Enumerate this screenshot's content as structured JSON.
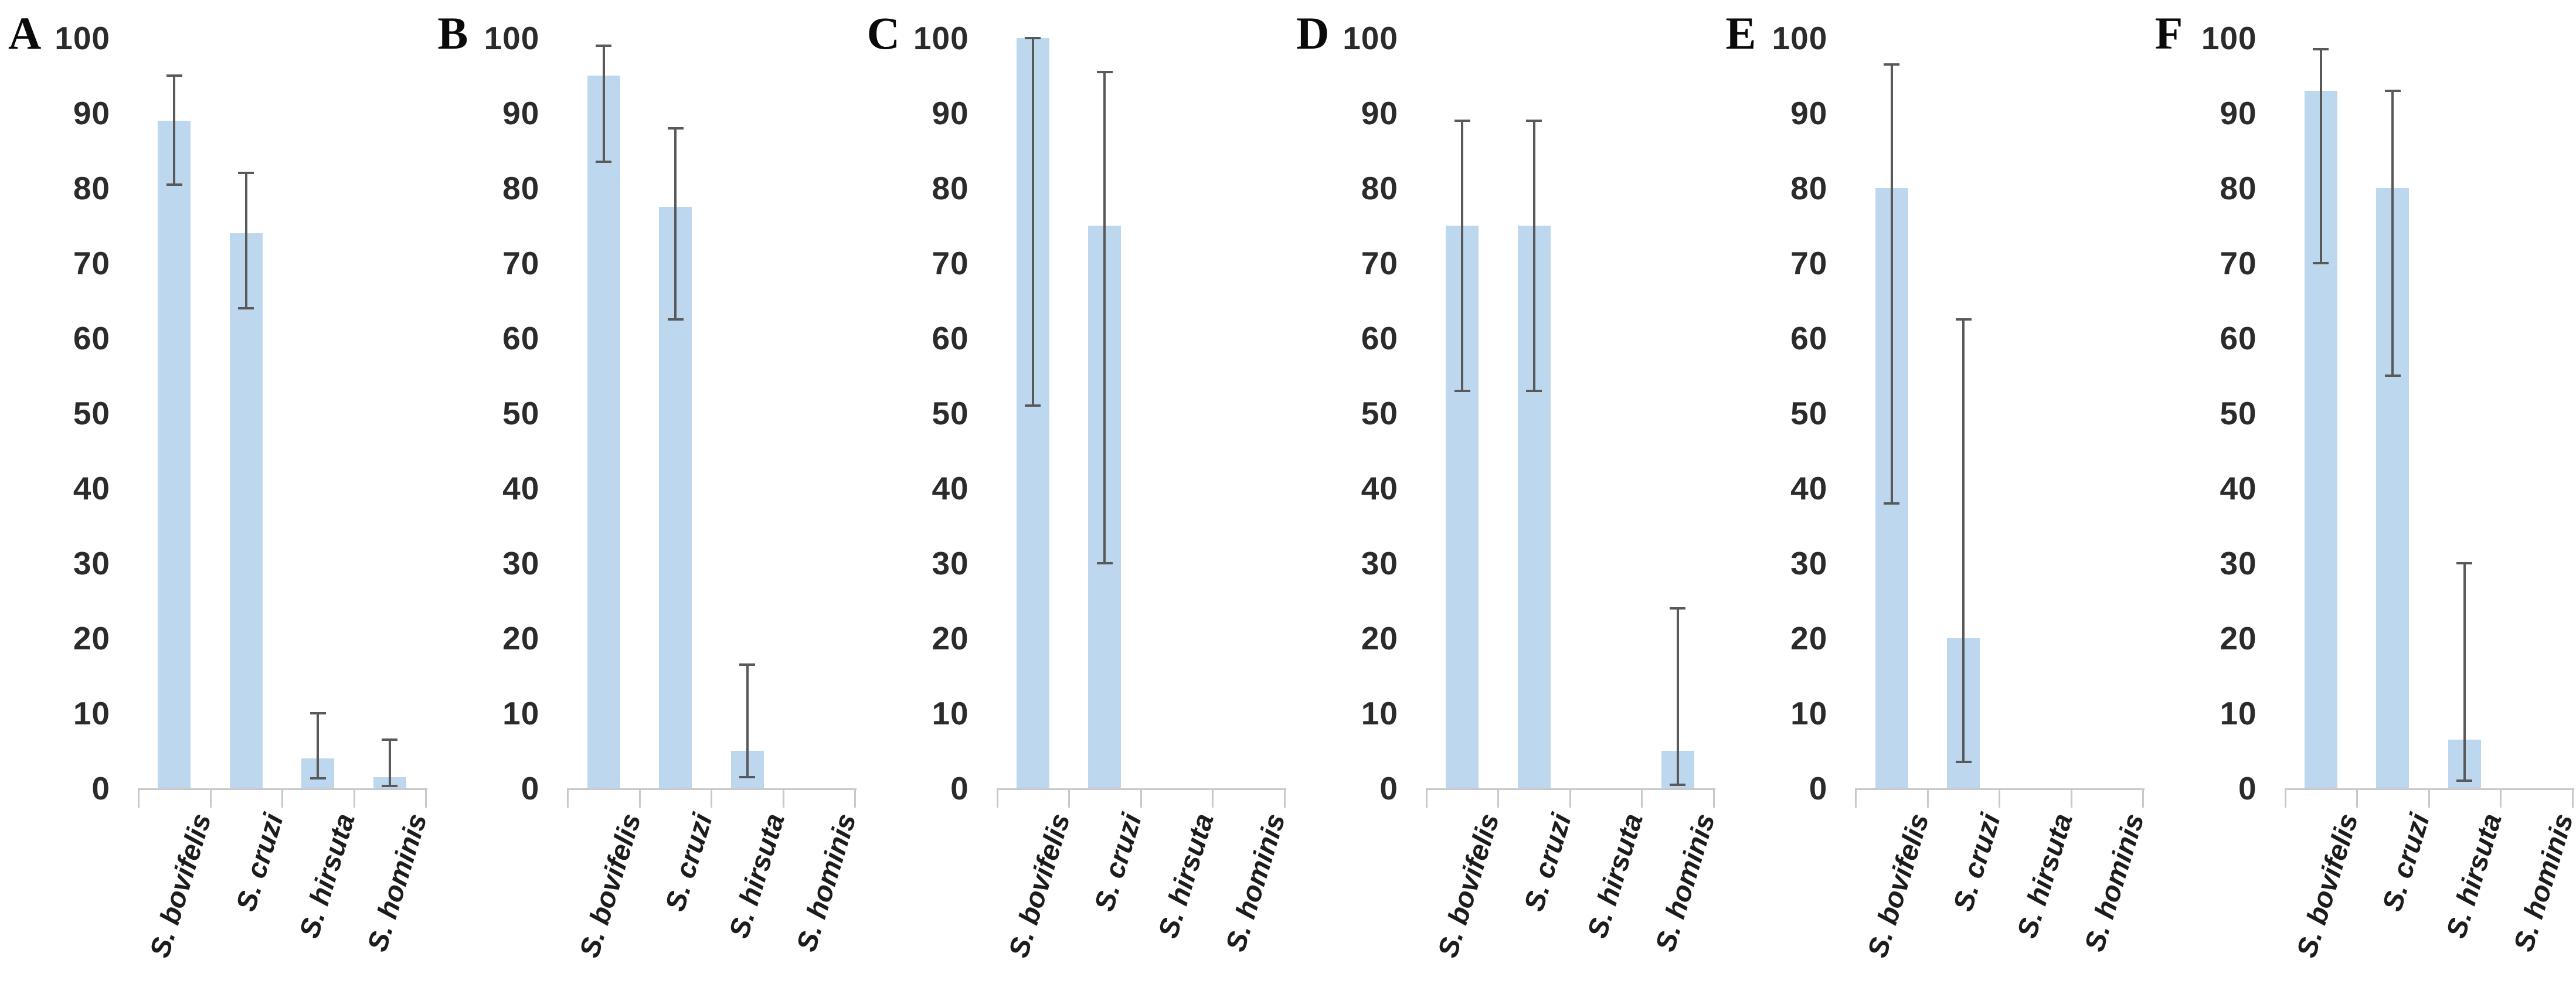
{
  "figure": {
    "background": "#ffffff",
    "bar_color": "#BDD7EE",
    "error_bar_color": "#595959",
    "axis_color": "#C9C9C9",
    "tick_label_color": "#2b2b2b"
  },
  "chart_data": [
    {
      "type": "bar",
      "panel_label": "A",
      "title": "",
      "xlabel": "",
      "ylabel": "",
      "ylim": [
        0,
        100
      ],
      "yticks": [
        0,
        10,
        20,
        30,
        40,
        50,
        60,
        70,
        80,
        90,
        100
      ],
      "grid": "off",
      "legend": "none",
      "categories": [
        "S. bovifelis",
        "S. cruzi",
        "S. hirsuta",
        "S. hominis"
      ],
      "values": [
        89,
        74,
        4,
        1.5
      ],
      "error_low": [
        80.5,
        64,
        1.3,
        0.3
      ],
      "error_high": [
        95,
        82,
        10,
        6.5
      ]
    },
    {
      "type": "bar",
      "panel_label": "B",
      "title": "",
      "xlabel": "",
      "ylabel": "",
      "ylim": [
        0,
        100
      ],
      "yticks": [
        0,
        10,
        20,
        30,
        40,
        50,
        60,
        70,
        80,
        90,
        100
      ],
      "grid": "off",
      "legend": "none",
      "categories": [
        "S. bovifelis",
        "S. cruzi",
        "S. hirsuta",
        "S. hominis"
      ],
      "values": [
        95,
        77.5,
        5,
        0
      ],
      "error_low": [
        83.5,
        62.5,
        1.5,
        null
      ],
      "error_high": [
        99,
        88,
        16.5,
        null
      ]
    },
    {
      "type": "bar",
      "panel_label": "C",
      "title": "",
      "xlabel": "",
      "ylabel": "",
      "ylim": [
        0,
        100
      ],
      "yticks": [
        0,
        10,
        20,
        30,
        40,
        50,
        60,
        70,
        80,
        90,
        100
      ],
      "grid": "off",
      "legend": "none",
      "categories": [
        "S. bovifelis",
        "S. cruzi",
        "S. hirsuta",
        "S. hominis"
      ],
      "values": [
        100,
        75,
        0,
        0
      ],
      "error_low": [
        51,
        30,
        null,
        null
      ],
      "error_high": [
        100,
        95.5,
        null,
        null
      ]
    },
    {
      "type": "bar",
      "panel_label": "D",
      "title": "",
      "xlabel": "",
      "ylabel": "",
      "ylim": [
        0,
        100
      ],
      "yticks": [
        0,
        10,
        20,
        30,
        40,
        50,
        60,
        70,
        80,
        90,
        100
      ],
      "grid": "off",
      "legend": "none",
      "categories": [
        "S. bovifelis",
        "S. cruzi",
        "S. hirsuta",
        "S. hominis"
      ],
      "values": [
        75,
        75,
        0,
        5
      ],
      "error_low": [
        53,
        53,
        null,
        0.5
      ],
      "error_high": [
        89,
        89,
        null,
        24
      ]
    },
    {
      "type": "bar",
      "panel_label": "E",
      "title": "",
      "xlabel": "",
      "ylabel": "",
      "ylim": [
        0,
        100
      ],
      "yticks": [
        0,
        10,
        20,
        30,
        40,
        50,
        60,
        70,
        80,
        90,
        100
      ],
      "grid": "off",
      "legend": "none",
      "categories": [
        "S. bovifelis",
        "S. cruzi",
        "S. hirsuta",
        "S. hominis"
      ],
      "values": [
        80,
        20,
        0,
        0
      ],
      "error_low": [
        38,
        3.5,
        null,
        null
      ],
      "error_high": [
        96.5,
        62.5,
        null,
        null
      ]
    },
    {
      "type": "bar",
      "panel_label": "F",
      "title": "",
      "xlabel": "",
      "ylabel": "",
      "ylim": [
        0,
        100
      ],
      "yticks": [
        0,
        10,
        20,
        30,
        40,
        50,
        60,
        70,
        80,
        90,
        100
      ],
      "grid": "off",
      "legend": "none",
      "categories": [
        "S. bovifelis",
        "S. cruzi",
        "S. hirsuta",
        "S. hominis"
      ],
      "values": [
        93,
        80,
        6.5,
        0
      ],
      "error_low": [
        70,
        55,
        1,
        null
      ],
      "error_high": [
        98.5,
        93,
        30,
        null
      ]
    }
  ]
}
